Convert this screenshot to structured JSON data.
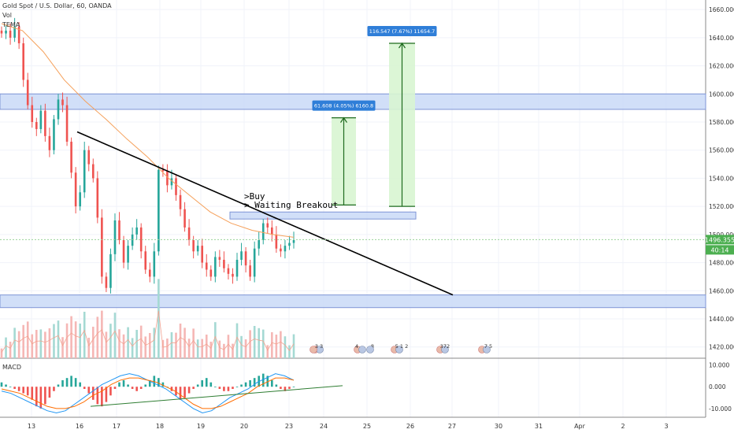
{
  "header": {
    "symbol": "Gold Spot / U.S. Dollar, 60, OANDA",
    "vol_label": "Vol",
    "tema_label": "TEMA",
    "macd_label": "MACD"
  },
  "colors": {
    "up": "#26a69a",
    "down": "#ef5350",
    "tema": "#f5a05a",
    "zone_fill": "#c9d9f7",
    "zone_stroke": "#7e95d6",
    "target_fill": "#d8f5d1",
    "target_stroke": "#1e6b1e",
    "label_bg": "#2f7ed8",
    "price_tag": "#4caf50"
  },
  "chart_data": {
    "type": "candlestick",
    "price_axis": {
      "ticks": [
        "1660.000",
        "1640.000",
        "1620.000",
        "1600.000",
        "1580.000",
        "1560.000",
        "1540.000",
        "1520.000",
        "1500.000",
        "1480.000",
        "1460.000",
        "1440.000",
        "1420.000"
      ],
      "range": [
        1412,
        1664
      ]
    },
    "macd_axis": {
      "ticks": [
        "10.000",
        "0.000",
        "-10.000"
      ],
      "range": [
        -14,
        12
      ]
    },
    "x_axis": {
      "labels": [
        "13",
        "16",
        "17",
        "18",
        "19",
        "20",
        "23",
        "24",
        "25",
        "26",
        "27",
        "30",
        "31",
        "Apr",
        "2",
        "3"
      ]
    },
    "current_price": {
      "price": "1496.355",
      "countdown": "40:14",
      "value": 1496.355
    },
    "candles": [
      1643,
      1645,
      1640,
      1648,
      1636,
      1610,
      1592,
      1580,
      1575,
      1588,
      1570,
      1560,
      1582,
      1596,
      1592,
      1566,
      1544,
      1520,
      1530,
      1560,
      1550,
      1540,
      1512,
      1470,
      1462,
      1486,
      1510,
      1496,
      1480,
      1492,
      1500,
      1505,
      1488,
      1475,
      1470,
      1488,
      1546,
      1545,
      1535,
      1540,
      1528,
      1518,
      1505,
      1496,
      1488,
      1492,
      1480,
      1475,
      1470,
      1484,
      1482,
      1476,
      1472,
      1470,
      1482,
      1488,
      1478,
      1470,
      1490,
      1496,
      1508,
      1505,
      1500,
      1490,
      1488,
      1492,
      1494,
      1496
    ],
    "tema": [
      1650,
      1645,
      1630,
      1610,
      1595,
      1582,
      1568,
      1555,
      1540,
      1528,
      1516,
      1508,
      1503,
      1500,
      1498
    ],
    "trendline": {
      "from": [
        1573
      ],
      "to": [
        1457
      ]
    },
    "zones": [
      {
        "name": "upper-resistance",
        "from": 1589,
        "to": 1600
      },
      {
        "name": "breakout",
        "from": 1511,
        "to": 1516
      },
      {
        "name": "lower-support",
        "from": 1448,
        "to": 1457
      }
    ],
    "targets": [
      {
        "label": "61.608 (4.05%) 6160.8",
        "from": 1521,
        "to": 1583
      },
      {
        "label": "116.547 (7.67%) 11654.7",
        "from": 1520,
        "to": 1636
      }
    ],
    "annotations": [
      ">Buy",
      "> Waiting Breakout"
    ],
    "event_badges": [
      "3 3",
      "4",
      "8",
      "5 1 2",
      "372",
      "7 5"
    ]
  }
}
